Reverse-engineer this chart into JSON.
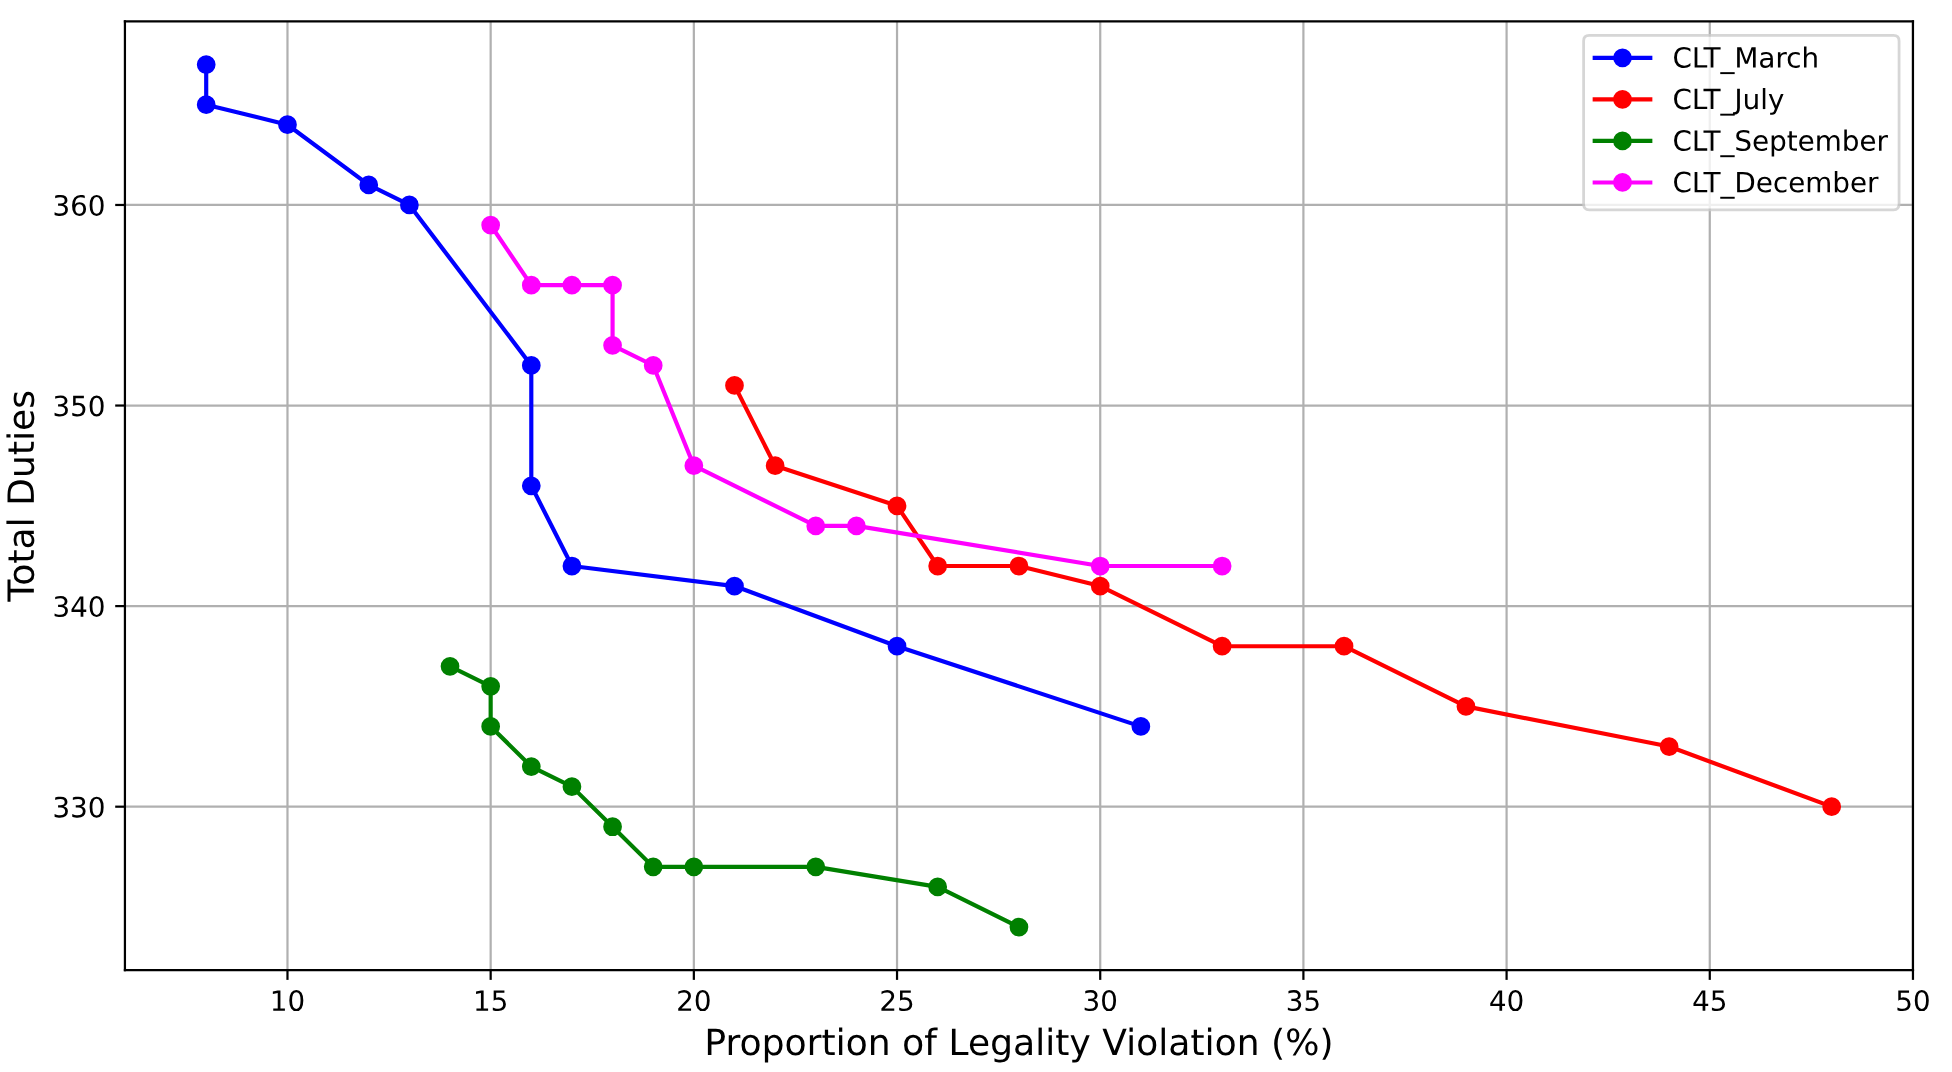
{
  "chart_data": {
    "type": "line",
    "xlabel": "Proportion of Legality Violation (%)",
    "ylabel": "Total Duties",
    "xlim": [
      6,
      50
    ],
    "ylim": [
      321.85,
      369.15
    ],
    "xticks": [
      10,
      15,
      20,
      25,
      30,
      35,
      40,
      45,
      50
    ],
    "yticks": [
      330,
      340,
      350,
      360
    ],
    "grid": true,
    "legend": "top right",
    "marker": "circle",
    "line_style": "solid",
    "series": [
      {
        "name": "CLT_March",
        "color": "#0000ff",
        "x": [
          8,
          8,
          10,
          12,
          13,
          16,
          16,
          17,
          21,
          25,
          31
        ],
        "values": [
          367,
          365,
          364,
          361,
          360,
          352,
          346,
          342,
          341,
          338,
          334
        ]
      },
      {
        "name": "CLT_July",
        "color": "#ff0000",
        "x": [
          21,
          22,
          25,
          26,
          28,
          30,
          33,
          36,
          39,
          44,
          48
        ],
        "values": [
          351,
          347,
          345,
          342,
          342,
          341,
          338,
          338,
          335,
          333,
          330
        ]
      },
      {
        "name": "CLT_September",
        "color": "#008000",
        "x": [
          14,
          15,
          15,
          16,
          17,
          18,
          19,
          20,
          23,
          26,
          28
        ],
        "values": [
          337,
          336,
          334,
          332,
          331,
          329,
          327,
          327,
          327,
          326,
          324
        ]
      },
      {
        "name": "CLT_December",
        "color": "#ff00ff",
        "x": [
          15,
          16,
          17,
          18,
          18,
          19,
          20,
          23,
          24,
          30,
          33
        ],
        "values": [
          359,
          356,
          356,
          356,
          353,
          352,
          347,
          344,
          344,
          342,
          342
        ]
      }
    ]
  }
}
